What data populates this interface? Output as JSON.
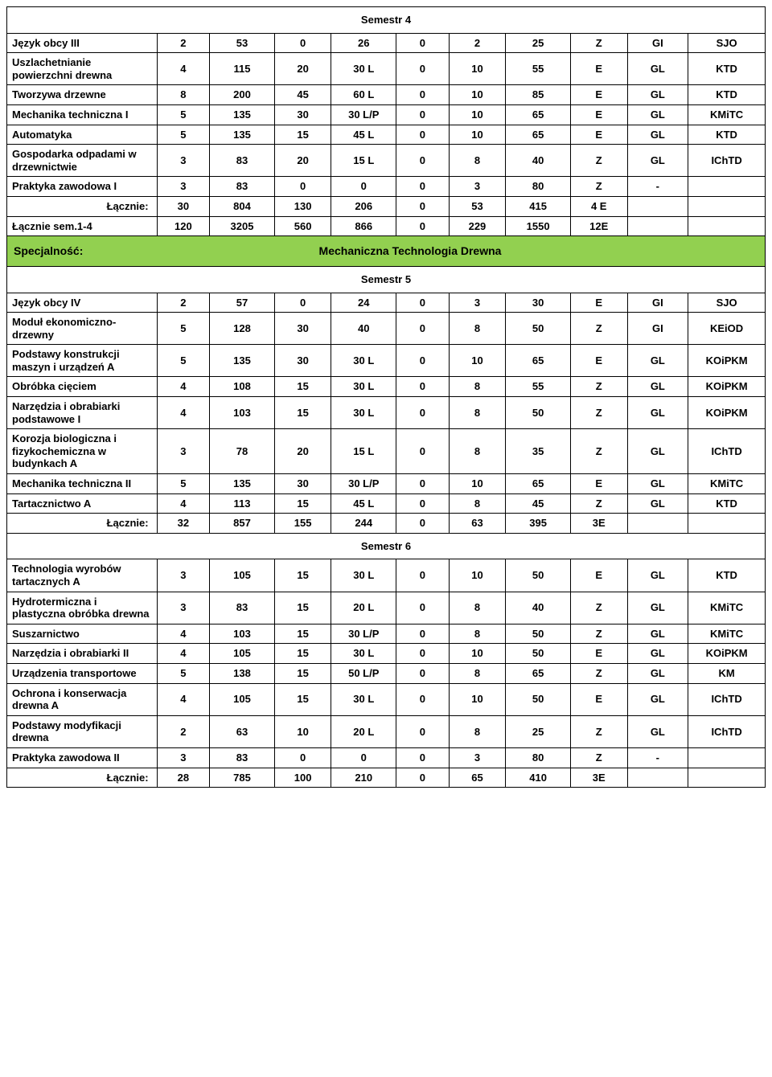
{
  "colors": {
    "spec_bg": "#92d050",
    "border": "#000000",
    "text": "#000000",
    "page_bg": "#ffffff"
  },
  "typography": {
    "font_family": "Arial, Helvetica, sans-serif",
    "base_size_pt": 10,
    "weight": "bold"
  },
  "spec": {
    "label": "Specjalność:",
    "value": "Mechaniczna Technologia Drewna"
  },
  "sections": [
    {
      "title": "Semestr 4",
      "rows": [
        {
          "name": "Język obcy III",
          "c": [
            "2",
            "53",
            "0",
            "26",
            "0",
            "2",
            "25",
            "Z",
            "GI",
            "SJO"
          ]
        },
        {
          "name": "Uszlachetnianie powierzchni drewna",
          "c": [
            "4",
            "115",
            "20",
            "30 L",
            "0",
            "10",
            "55",
            "E",
            "GL",
            "KTD"
          ]
        },
        {
          "name": "Tworzywa drzewne",
          "c": [
            "8",
            "200",
            "45",
            "60 L",
            "0",
            "10",
            "85",
            "E",
            "GL",
            "KTD"
          ]
        },
        {
          "name": "Mechanika techniczna I",
          "c": [
            "5",
            "135",
            "30",
            "30 L/P",
            "0",
            "10",
            "65",
            "E",
            "GL",
            "KMiTC"
          ]
        },
        {
          "name": "Automatyka",
          "c": [
            "5",
            "135",
            "15",
            "45 L",
            "0",
            "10",
            "65",
            "E",
            "GL",
            "KTD"
          ]
        },
        {
          "name": "Gospodarka odpadami w drzewnictwie",
          "c": [
            "3",
            "83",
            "20",
            "15 L",
            "0",
            "8",
            "40",
            "Z",
            "GL",
            "IChTD"
          ]
        },
        {
          "name": "Praktyka zawodowa I",
          "c": [
            "3",
            "83",
            "0",
            "0",
            "0",
            "3",
            "80",
            "Z",
            "-",
            ""
          ]
        },
        {
          "name": "Łącznie:",
          "sum": true,
          "c": [
            "30",
            "804",
            "130",
            "206",
            "0",
            "53",
            "415",
            "4 E",
            "",
            ""
          ]
        },
        {
          "name": "Łącznie sem.1-4",
          "c": [
            "120",
            "3205",
            "560",
            "866",
            "0",
            "229",
            "1550",
            "12E",
            "",
            ""
          ]
        }
      ]
    },
    {
      "title": "Semestr 5",
      "rows": [
        {
          "name": "Język obcy IV",
          "c": [
            "2",
            "57",
            "0",
            "24",
            "0",
            "3",
            "30",
            "E",
            "GI",
            "SJO"
          ]
        },
        {
          "name": "Moduł ekonomiczno-drzewny",
          "c": [
            "5",
            "128",
            "30",
            "40",
            "0",
            "8",
            "50",
            "Z",
            "GI",
            "KEiOD"
          ]
        },
        {
          "name": "Podstawy konstrukcji maszyn i urządzeń A",
          "c": [
            "5",
            "135",
            "30",
            "30 L",
            "0",
            "10",
            "65",
            "E",
            "GL",
            "KOiPKM"
          ]
        },
        {
          "name": "Obróbka cięciem",
          "c": [
            "4",
            "108",
            "15",
            "30 L",
            "0",
            "8",
            "55",
            "Z",
            "GL",
            "KOiPKM"
          ]
        },
        {
          "name": "Narzędzia i obrabiarki podstawowe I",
          "c": [
            "4",
            "103",
            "15",
            "30 L",
            "0",
            "8",
            "50",
            "Z",
            "GL",
            "KOiPKM"
          ]
        },
        {
          "name": "Korozja biologiczna i fizykochemiczna w budynkach A",
          "c": [
            "3",
            "78",
            "20",
            "15 L",
            "0",
            "8",
            "35",
            "Z",
            "GL",
            "IChTD"
          ]
        },
        {
          "name": "Mechanika techniczna II",
          "c": [
            "5",
            "135",
            "30",
            "30 L/P",
            "0",
            "10",
            "65",
            "E",
            "GL",
            "KMiTC"
          ]
        },
        {
          "name": "Tartacznictwo A",
          "c": [
            "4",
            "113",
            "15",
            "45 L",
            "0",
            "8",
            "45",
            "Z",
            "GL",
            "KTD"
          ]
        },
        {
          "name": "Łącznie:",
          "sum": true,
          "c": [
            "32",
            "857",
            "155",
            "244",
            "0",
            "63",
            "395",
            "3E",
            "",
            ""
          ]
        }
      ]
    },
    {
      "title": "Semestr 6",
      "rows": [
        {
          "name": "Technologia wyrobów tartacznych A",
          "c": [
            "3",
            "105",
            "15",
            "30 L",
            "0",
            "10",
            "50",
            "E",
            "GL",
            "KTD"
          ]
        },
        {
          "name": "Hydrotermiczna i plastyczna obróbka drewna",
          "c": [
            "3",
            "83",
            "15",
            "20 L",
            "0",
            "8",
            "40",
            "Z",
            "GL",
            "KMiTC"
          ]
        },
        {
          "name": "Suszarnictwo",
          "c": [
            "4",
            "103",
            "15",
            "30 L/P",
            "0",
            "8",
            "50",
            "Z",
            "GL",
            "KMiTC"
          ]
        },
        {
          "name": "Narzędzia i obrabiarki II",
          "c": [
            "4",
            "105",
            "15",
            "30 L",
            "0",
            "10",
            "50",
            "E",
            "GL",
            "KOiPKM"
          ]
        },
        {
          "name": "Urządzenia transportowe",
          "c": [
            "5",
            "138",
            "15",
            "50 L/P",
            "0",
            "8",
            "65",
            "Z",
            "GL",
            "KM"
          ]
        },
        {
          "name": "Ochrona i konserwacja drewna A",
          "c": [
            "4",
            "105",
            "15",
            "30 L",
            "0",
            "10",
            "50",
            "E",
            "GL",
            "IChTD"
          ]
        },
        {
          "name": "Podstawy modyfikacji drewna",
          "c": [
            "2",
            "63",
            "10",
            "20 L",
            "0",
            "8",
            "25",
            "Z",
            "GL",
            "IChTD"
          ]
        },
        {
          "name": "Praktyka zawodowa II",
          "c": [
            "3",
            "83",
            "0",
            "0",
            "0",
            "3",
            "80",
            "Z",
            "-",
            ""
          ]
        },
        {
          "name": "Łącznie:",
          "sum": true,
          "c": [
            "28",
            "785",
            "100",
            "210",
            "0",
            "65",
            "410",
            "3E",
            "",
            ""
          ]
        }
      ]
    }
  ]
}
